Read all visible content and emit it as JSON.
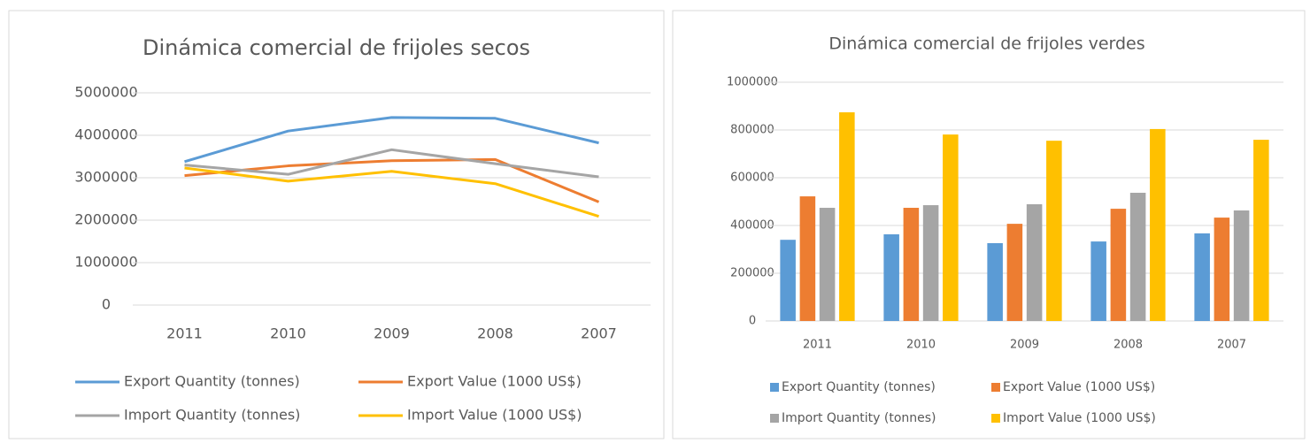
{
  "chart_data": [
    {
      "type": "line",
      "title": "Dinámica comercial de frijoles secos",
      "categories": [
        "2011",
        "2010",
        "2009",
        "2008",
        "2007"
      ],
      "series": [
        {
          "name": "Export Quantity (tonnes)",
          "color": "#5b9bd5",
          "values": [
            3380000,
            4100000,
            4420000,
            4400000,
            3820000
          ]
        },
        {
          "name": "Export Value (1000 US$)",
          "color": "#ed7d31",
          "values": [
            3050000,
            3280000,
            3400000,
            3430000,
            2430000
          ]
        },
        {
          "name": "Import Quantity (tonnes)",
          "color": "#a5a5a5",
          "values": [
            3300000,
            3080000,
            3660000,
            3330000,
            3020000
          ]
        },
        {
          "name": "Import Value (1000 US$)",
          "color": "#ffc000",
          "values": [
            3230000,
            2920000,
            3150000,
            2860000,
            2090000
          ]
        }
      ],
      "ylim": [
        0,
        5000000
      ],
      "yticks": [
        0,
        1000000,
        2000000,
        3000000,
        4000000,
        5000000
      ],
      "grid": true,
      "legend": "bottom"
    },
    {
      "type": "bar",
      "title": "Dinámica comercial de frijoles verdes",
      "categories": [
        "2011",
        "2010",
        "2009",
        "2008",
        "2007"
      ],
      "series": [
        {
          "name": "Export Quantity (tonnes)",
          "color": "#5b9bd5",
          "values": [
            340000,
            363000,
            326000,
            333000,
            367000
          ]
        },
        {
          "name": "Export Value (1000 US$)",
          "color": "#ed7d31",
          "values": [
            522000,
            474000,
            407000,
            470000,
            433000
          ]
        },
        {
          "name": "Import Quantity (tonnes)",
          "color": "#a5a5a5",
          "values": [
            474000,
            485000,
            489000,
            537000,
            463000
          ]
        },
        {
          "name": "Import Value (1000 US$)",
          "color": "#ffc000",
          "values": [
            874000,
            781000,
            755000,
            804000,
            759000
          ]
        }
      ],
      "ylim": [
        0,
        1000000
      ],
      "yticks": [
        0,
        200000,
        400000,
        600000,
        800000,
        1000000
      ],
      "grid": true,
      "legend": "bottom"
    }
  ]
}
